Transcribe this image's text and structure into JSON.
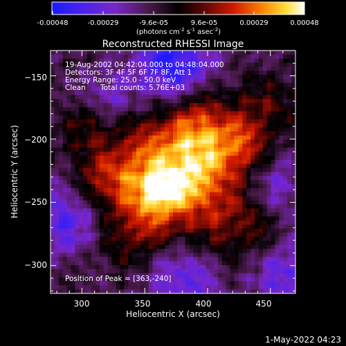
{
  "colorbar": {
    "tick_labels": [
      "-0.00048",
      "-0.00029",
      "-9.6e-05",
      "9.6e-05",
      "0.00029",
      "0.00048"
    ],
    "units_main": "(photons cm",
    "units_sup1": "-2",
    "units_mid1": " s",
    "units_sup2": "-1",
    "units_mid2": " asec",
    "units_sup3": "-2",
    "units_end": ")",
    "range": [
      -0.00048,
      0.00048
    ]
  },
  "title": "Reconstructed RHESSI Image",
  "annotations": {
    "time": "19-Aug-2002 04:42:04.000 to 04:48:04.000",
    "detectors": "Detectors: 3F 4F 5F 6F 7F 8F, Att 1",
    "energy": "Energy Range: 25.0 - 50.0 keV",
    "clean_label": "Clean",
    "total_counts": "Total counts: 5.76E+03",
    "peak": "Position of Peak = [363,-240]"
  },
  "axes": {
    "xlabel": "Heliocentric X (arcsec)",
    "ylabel": "Heliocentric Y (arcsec)",
    "x_range": [
      275,
      470
    ],
    "y_range": [
      -322,
      -130
    ],
    "x_ticks": [
      {
        "value": 300,
        "label": "300"
      },
      {
        "value": 350,
        "label": "350"
      },
      {
        "value": 400,
        "label": "400"
      },
      {
        "value": 450,
        "label": "450"
      }
    ],
    "y_ticks": [
      {
        "value": -150,
        "label": "−150"
      },
      {
        "value": -200,
        "label": "−200"
      },
      {
        "value": -250,
        "label": "−250"
      },
      {
        "value": -300,
        "label": "−300"
      }
    ]
  },
  "footer": {
    "timestamp": "1-May-2022 04:23"
  },
  "image_peak": [
    363,
    -240
  ],
  "colors": {
    "background": "#000000",
    "text": "#ffffff"
  }
}
